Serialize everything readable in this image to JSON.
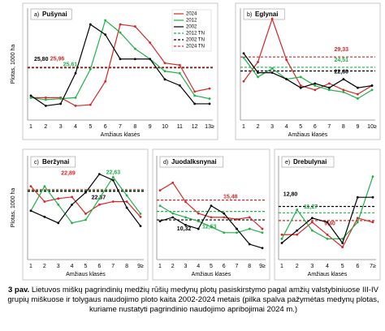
{
  "chart_data": [
    {
      "type": "line",
      "panel_label": "a)",
      "title": "Pušynai",
      "y_label": "Plotas, 1000 ha",
      "x_label": "Amžiaus klasės",
      "categories": [
        "1",
        "2",
        "3",
        "4",
        "5",
        "6",
        "7",
        "8",
        "9",
        "10",
        "11",
        "12",
        "13≥"
      ],
      "ylim": [
        0,
        55
      ],
      "series": [
        {
          "name": "2024",
          "color": "#d62728",
          "values": [
            11,
            11,
            11,
            7,
            7.5,
            19,
            47,
            46,
            38,
            28,
            27,
            14,
            15.5
          ]
        },
        {
          "name": "2012",
          "color": "#22b04b",
          "values": [
            11,
            10,
            10.5,
            11,
            25,
            49,
            43,
            35,
            30,
            24,
            23,
            12,
            10.5
          ]
        },
        {
          "name": "2002",
          "color": "#000000",
          "values": [
            12,
            7,
            8,
            23,
            47,
            42,
            30,
            30,
            30,
            20,
            17,
            8,
            8
          ]
        }
      ],
      "reference_lines": [
        {
          "name": "2012 TN",
          "color": "#22b04b",
          "value": 25.61,
          "value_label": "25,61"
        },
        {
          "name": "2002 TN",
          "color": "#000000",
          "value": 25.8,
          "value_label": "25,80"
        },
        {
          "name": "2024 TN",
          "color": "#d62728",
          "value": 25.96,
          "value_label": "25,96"
        }
      ]
    },
    {
      "type": "line",
      "panel_label": "b)",
      "title": "Eglynai",
      "x_label": "Amžiaus klasės",
      "categories": [
        "1",
        "2",
        "3",
        "4",
        "5",
        "6",
        "7",
        "8",
        "9",
        "10≥"
      ],
      "ylim": [
        0,
        52
      ],
      "series": [
        {
          "color": "#d62728",
          "values": [
            18,
            27,
            47,
            28,
            16,
            14,
            17,
            14,
            12,
            16
          ]
        },
        {
          "color": "#22b04b",
          "values": [
            29,
            20,
            24,
            19,
            20,
            16,
            14,
            13,
            10,
            14
          ]
        },
        {
          "color": "#000000",
          "values": [
            31,
            22,
            22,
            19,
            15,
            17,
            15,
            19,
            15,
            16
          ]
        }
      ],
      "reference_lines": [
        {
          "color": "#d62728",
          "value": 29.33,
          "value_label": "29,33"
        },
        {
          "color": "#22b04b",
          "value": 24.51,
          "value_label": "24,51"
        },
        {
          "color": "#000000",
          "value": 22.8,
          "value_label": "22,80"
        }
      ]
    },
    {
      "type": "line",
      "panel_label": "c)",
      "title": "Beržynai",
      "y_label": "Plotas, 1000 ha",
      "x_label": "Amžiaus klasės",
      "categories": [
        "1",
        "2",
        "3",
        "4",
        "5",
        "6",
        "7",
        "8",
        "9≥"
      ],
      "ylim": [
        0,
        34
      ],
      "series": [
        {
          "color": "#d62728",
          "values": [
            24,
            19,
            20,
            20.5,
            15,
            18,
            19,
            19,
            14
          ]
        },
        {
          "color": "#22b04b",
          "values": [
            16,
            24,
            18,
            12,
            13,
            20,
            27,
            21,
            15
          ]
        },
        {
          "color": "#000000",
          "values": [
            16,
            14,
            12,
            18,
            22,
            28,
            26,
            17,
            11
          ]
        }
      ],
      "reference_lines": [
        {
          "color": "#d62728",
          "value": 22.89,
          "value_label": "22,89"
        },
        {
          "color": "#22b04b",
          "value": 22.63,
          "value_label": "22,63"
        },
        {
          "color": "#000000",
          "value": 22.37,
          "value_label": "22,37"
        }
      ]
    },
    {
      "type": "line",
      "panel_label": "d)",
      "title": "Juodalksnynai",
      "x_label": "Amžiaus klasės",
      "categories": [
        "1",
        "2",
        "3",
        "4",
        "5",
        "6",
        "7",
        "8",
        "9≥"
      ],
      "ylim": [
        0,
        27
      ],
      "series": [
        {
          "color": "#d62728",
          "values": [
            18,
            20,
            15,
            12,
            11,
            11,
            10.5,
            11,
            8
          ]
        },
        {
          "color": "#22b04b",
          "values": [
            14,
            12,
            11,
            10,
            8.5,
            7,
            7,
            8,
            7
          ]
        },
        {
          "color": "#000000",
          "values": [
            10,
            11,
            9,
            8,
            14,
            12,
            8,
            4,
            3
          ]
        }
      ],
      "reference_lines": [
        {
          "color": "#000000",
          "value": 10.32,
          "value_label": "10,32"
        },
        {
          "color": "#22b04b",
          "value": 12.53,
          "value_label": "12,53"
        },
        {
          "color": "#d62728",
          "value": 15.48,
          "value_label": "15,48"
        }
      ]
    },
    {
      "type": "line",
      "panel_label": "e)",
      "title": "Drebulynai",
      "x_label": "Amžiaus klasės",
      "categories": [
        "1",
        "2",
        "3",
        "4",
        "5",
        "6",
        "7≥"
      ],
      "ylim": [
        0,
        25
      ],
      "series": [
        {
          "color": "#d62728",
          "values": [
            6,
            6,
            9,
            6,
            3,
            10,
            9
          ]
        },
        {
          "color": "#22b04b",
          "values": [
            5,
            12,
            7,
            5,
            5,
            9,
            20
          ]
        },
        {
          "color": "#000000",
          "values": [
            4,
            7,
            10,
            9,
            4,
            15,
            15
          ]
        }
      ],
      "reference_lines": [
        {
          "color": "#000000",
          "value": 12.8,
          "value_label": "12,80"
        },
        {
          "color": "#22b04b",
          "value": 11.27,
          "value_label": "11,27"
        },
        {
          "color": "#d62728",
          "value": 9.4,
          "value_label": "9,40"
        }
      ]
    }
  ],
  "caption": {
    "label": "3 pav.",
    "text": "Lietuvos miškų pagrindinių medžių rūšių medynų plotų pasiskirstymo pagal amžių valstybiniuose III-IV grupių miškuose ir tolygaus naudojimo ploto kaita 2002-2024 metais (pilka spalva pažymėtas medynų plotas, kuriame nustatyti pagrindinio naudojimo apribojimai 2024 m.)"
  }
}
